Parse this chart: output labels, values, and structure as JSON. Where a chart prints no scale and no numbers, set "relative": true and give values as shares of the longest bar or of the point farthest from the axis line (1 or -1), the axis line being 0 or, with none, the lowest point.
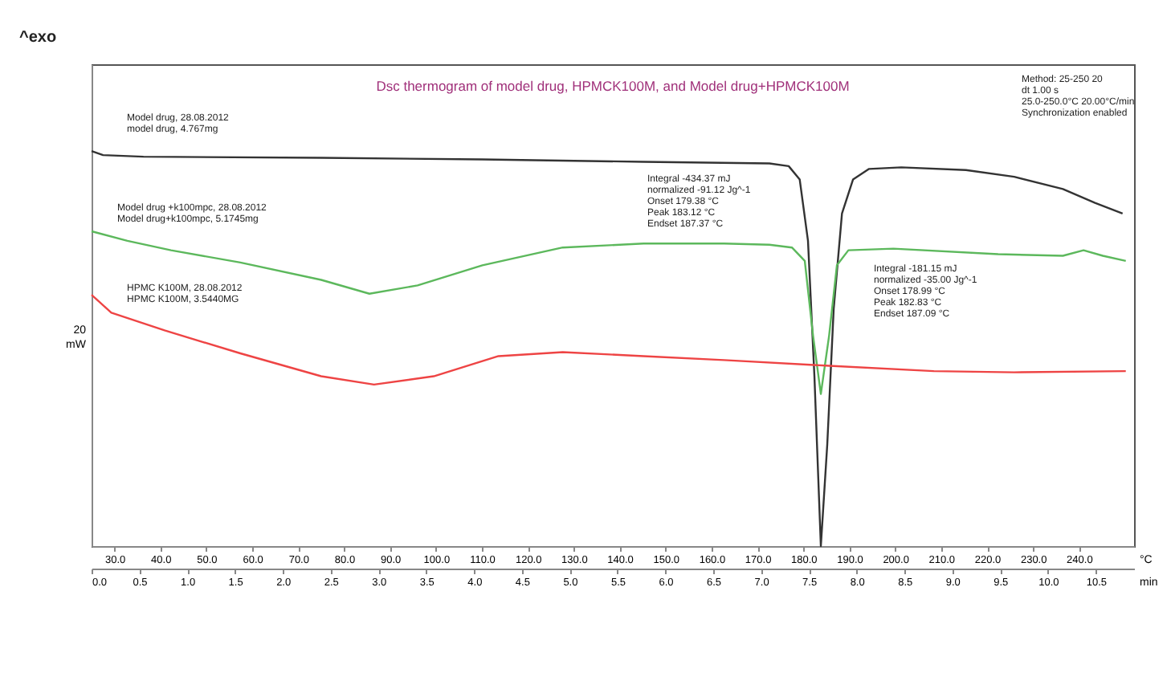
{
  "chart_data": {
    "type": "line",
    "relative": true,
    "title": "Dsc thermogram of model drug, HPMCK100M, and Model drug+HPMCK100M",
    "ylabel": "20\nmW",
    "xlabel": "°C",
    "x2label": "min",
    "xlim": [
      25,
      252
    ],
    "xticks": [
      {
        "value": 30,
        "label": "30.0"
      },
      {
        "value": 40,
        "label": "40.0"
      },
      {
        "value": 50,
        "label": "50.0"
      },
      {
        "value": 60,
        "label": "60.0"
      },
      {
        "value": 70,
        "label": "70.0"
      },
      {
        "value": 80,
        "label": "80.0"
      },
      {
        "value": 90,
        "label": "90.0"
      },
      {
        "value": 100,
        "label": "100.0"
      },
      {
        "value": 110,
        "label": "110.0"
      },
      {
        "value": 120,
        "label": "120.0"
      },
      {
        "value": 130,
        "label": "130.0"
      },
      {
        "value": 140,
        "label": "140.0"
      },
      {
        "value": 150,
        "label": "150.0"
      },
      {
        "value": 160,
        "label": "160.0"
      },
      {
        "value": 170,
        "label": "170.0"
      },
      {
        "value": 180,
        "label": "180.0"
      },
      {
        "value": 190,
        "label": "190.0"
      },
      {
        "value": 200,
        "label": "200.0"
      },
      {
        "value": 210,
        "label": "210.0"
      },
      {
        "value": 220,
        "label": "220.0"
      },
      {
        "value": 230,
        "label": "230.0"
      },
      {
        "value": 240,
        "label": "240.0"
      }
    ],
    "x2lim": [
      0,
      10.9
    ],
    "x2ticks": [
      {
        "value": 0,
        "label": "0.0"
      },
      {
        "value": 0.5,
        "label": "0.5"
      },
      {
        "value": 1,
        "label": "1.0"
      },
      {
        "value": 1.5,
        "label": "1.5"
      },
      {
        "value": 2,
        "label": "2.0"
      },
      {
        "value": 2.5,
        "label": "2.5"
      },
      {
        "value": 3,
        "label": "3.0"
      },
      {
        "value": 3.5,
        "label": "3.5"
      },
      {
        "value": 4,
        "label": "4.0"
      },
      {
        "value": 4.5,
        "label": "4.5"
      },
      {
        "value": 5,
        "label": "5.0"
      },
      {
        "value": 5.5,
        "label": "5.5"
      },
      {
        "value": 6,
        "label": "6.0"
      },
      {
        "value": 6.5,
        "label": "6.5"
      },
      {
        "value": 7,
        "label": "7.0"
      },
      {
        "value": 7.5,
        "label": "7.5"
      },
      {
        "value": 8,
        "label": "8.0"
      },
      {
        "value": 8.5,
        "label": "8.5"
      },
      {
        "value": 9,
        "label": "9.0"
      },
      {
        "value": 9.5,
        "label": "9.5"
      },
      {
        "value": 10,
        "label": "10.0"
      },
      {
        "value": 10.5,
        "label": "10.5"
      }
    ],
    "legend": false,
    "series": [
      {
        "color": "#333333",
        "x": [
          25,
          27.5,
          36.3,
          75,
          110,
          145.2,
          172.6,
          176.8,
          179.2,
          181,
          182.4,
          183.8,
          185.2,
          186.6,
          188.4,
          190.8,
          194.3,
          201.3,
          215.4,
          225.9,
          236.5,
          243.5,
          249.5
        ],
        "values": [
          1,
          0.99,
          0.986,
          0.983,
          0.979,
          0.973,
          0.969,
          0.962,
          0.928,
          0.773,
          0.43,
          0,
          0.258,
          0.601,
          0.842,
          0.928,
          0.955,
          0.959,
          0.952,
          0.935,
          0.904,
          0.869,
          0.842
        ]
      },
      {
        "color": "#5cb85c",
        "x": [
          25,
          32.8,
          42.3,
          57.4,
          75,
          85.5,
          96,
          110.1,
          127.6,
          145.2,
          162.7,
          172.6,
          177.5,
          180.3,
          182.1,
          183.8,
          185.6,
          187.3,
          189.8,
          199.6,
          222.4,
          236.5,
          241,
          245.2,
          250.2
        ],
        "values": [
          0.797,
          0.773,
          0.749,
          0.718,
          0.674,
          0.639,
          0.66,
          0.711,
          0.756,
          0.766,
          0.766,
          0.763,
          0.756,
          0.722,
          0.533,
          0.385,
          0.533,
          0.711,
          0.749,
          0.753,
          0.739,
          0.735,
          0.749,
          0.735,
          0.722
        ]
      },
      {
        "color": "#ee4444",
        "x": [
          25,
          29.3,
          40.9,
          57.4,
          75,
          86.5,
          99.5,
          113.6,
          127.6,
          145.2,
          162.7,
          184.8,
          208.4,
          225.9,
          250.2
        ],
        "values": [
          0.636,
          0.591,
          0.546,
          0.488,
          0.43,
          0.409,
          0.43,
          0.481,
          0.491,
          0.481,
          0.471,
          0.457,
          0.443,
          0.44,
          0.443
        ]
      }
    ],
    "annotations": [
      "^exo",
      "Method: 25-250 20\ndt 1.00 s\n   25.0-250.0°C 20.00°C/min\nSynchronization enabled",
      "Model drug, 28.08.2012\nmodel drug, 4.767mg",
      "Model drug +k100mpc, 28.08.2012\nModel drug+k100mpc, 5.1745mg",
      "HPMC K100M, 28.08.2012\nHPMC K100M, 3.5440MG",
      "Integral         -434.37 mJ\n  normalized   -91.12 Jg^-1\nOnset            179.38 °C\nPeak              183.12 °C\nEndset           187.37 °C",
      "Integral         -181.15 mJ\n  normalized   -35.00 Jg^-1\nOnset            178.99 °C\nPeak              182.83 °C\nEndset           187.09 °C"
    ]
  }
}
